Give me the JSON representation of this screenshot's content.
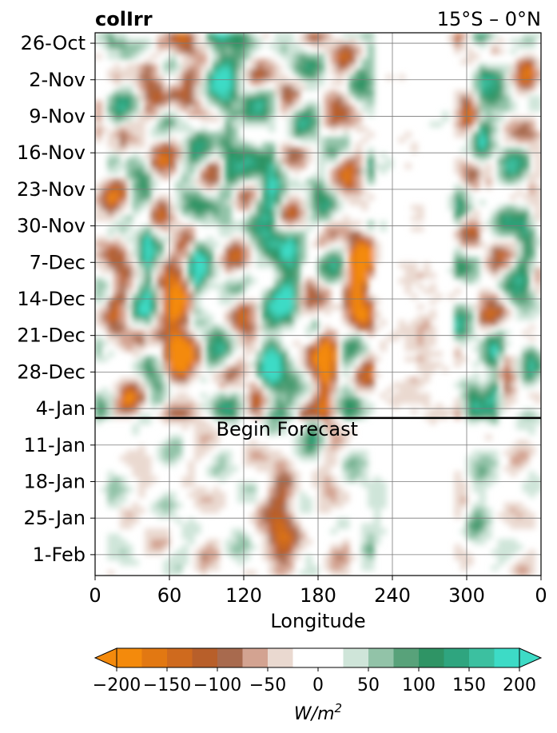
{
  "chart_data": {
    "type": "heatmap",
    "title_left": "colIrr",
    "title_right": "15°S – 0°N",
    "xlabel": "Longitude",
    "x_ticks": [
      "0",
      "60",
      "120",
      "180",
      "240",
      "300",
      "0"
    ],
    "x_tick_values": [
      0,
      60,
      120,
      180,
      240,
      300,
      360
    ],
    "xlim": [
      0,
      360
    ],
    "y_ticks": [
      "26-Oct",
      "2-Nov",
      "9-Nov",
      "16-Nov",
      "23-Nov",
      "30-Nov",
      "7-Dec",
      "14-Dec",
      "21-Dec",
      "28-Dec",
      "4-Jan",
      "11-Jan",
      "18-Jan",
      "25-Jan",
      "1-Feb"
    ],
    "y_tick_days": [
      0,
      7,
      14,
      21,
      28,
      35,
      42,
      49,
      56,
      63,
      70,
      77,
      84,
      91,
      98
    ],
    "ylim_days": [
      -2,
      102
    ],
    "forecast_start_day": 71.8,
    "forecast_label": "Begin Forecast",
    "grid": true,
    "colorbar": {
      "label": "W/m",
      "label_exponent": "2",
      "ticks": [
        "−200",
        "−150",
        "−100",
        "−50",
        "0",
        "50",
        "100",
        "150",
        "200"
      ],
      "tick_values": [
        -200,
        -150,
        -100,
        -50,
        0,
        50,
        100,
        150,
        200
      ],
      "levels": [
        -200,
        -175,
        -150,
        -125,
        -100,
        -75,
        -50,
        -25,
        25,
        50,
        75,
        100,
        125,
        150,
        175,
        200
      ],
      "colors": [
        "#f48a0c",
        "#e27812",
        "#cf6a1e",
        "#b85f2a",
        "#a86a4e",
        "#d3a391",
        "#ead9d0",
        "#ffffff",
        "#cfe5d9",
        "#92c3a8",
        "#58a27a",
        "#2f9465",
        "#2fa57f",
        "#3cc0a0",
        "#3ddbc6"
      ],
      "under_color": "#f48a0c",
      "over_color": "#3ddbc6",
      "extend": "both"
    },
    "anomaly_patches": [
      {
        "lon": 70,
        "day": 4,
        "w": 10,
        "h": 8,
        "v": -180
      },
      {
        "lon": 62,
        "day": 55,
        "w": 12,
        "h": 10,
        "v": -200
      },
      {
        "lon": 95,
        "day": 1,
        "w": 10,
        "h": 12,
        "v": 200
      },
      {
        "lon": 105,
        "day": 20,
        "w": 8,
        "h": 16,
        "v": 150
      },
      {
        "lon": 140,
        "day": 24,
        "w": 8,
        "h": 14,
        "v": 140
      },
      {
        "lon": 155,
        "day": 44,
        "w": 10,
        "h": 10,
        "v": 200
      },
      {
        "lon": 140,
        "day": 63,
        "w": 8,
        "h": 7,
        "v": 200
      },
      {
        "lon": 185,
        "day": 62,
        "w": 8,
        "h": 12,
        "v": -200
      },
      {
        "lon": 210,
        "day": 45,
        "w": 10,
        "h": 8,
        "v": -200
      },
      {
        "lon": 175,
        "day": 74,
        "w": 10,
        "h": 4,
        "v": 140
      },
      {
        "lon": 150,
        "day": 92,
        "w": 12,
        "h": 12,
        "v": -130
      },
      {
        "lon": 320,
        "day": 64,
        "w": 6,
        "h": 8,
        "v": 200
      },
      {
        "lon": 310,
        "day": 15,
        "w": 6,
        "h": 20,
        "v": 110
      },
      {
        "lon": 345,
        "day": 35,
        "w": 6,
        "h": 12,
        "v": 90
      },
      {
        "lon": 20,
        "day": 30,
        "w": 8,
        "h": 20,
        "v": -60
      },
      {
        "lon": 225,
        "day": 88,
        "w": 10,
        "h": 8,
        "v": 40
      },
      {
        "lon": 305,
        "day": 90,
        "w": 8,
        "h": 14,
        "v": 40
      },
      {
        "lon": 40,
        "day": 40,
        "w": 5,
        "h": 12,
        "v": 120
      },
      {
        "lon": 80,
        "day": 45,
        "w": 5,
        "h": 8,
        "v": 130
      },
      {
        "lon": 255,
        "day": 60,
        "w": 18,
        "h": 20,
        "v": -40
      }
    ]
  }
}
